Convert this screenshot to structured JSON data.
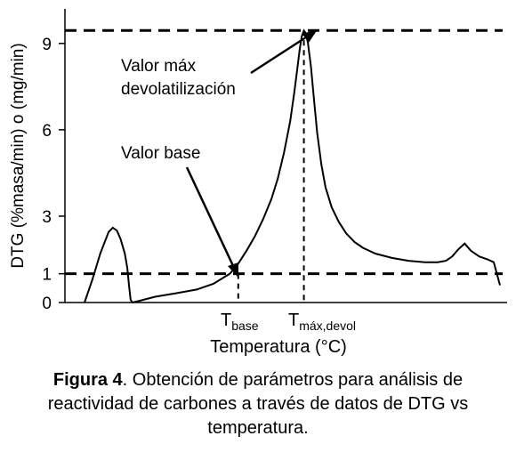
{
  "chart_data": {
    "type": "line",
    "ylabel": "DTG (%masa/min) o (mg/min)",
    "xlabel": "Temperatura (°C)",
    "yticks": [
      0,
      1,
      3,
      6,
      9
    ],
    "ylim": [
      0,
      10.2
    ],
    "grid": false,
    "x_ticks_labeled": false,
    "series": [
      {
        "segment": "initial peak",
        "x": [
          0.0,
          0.019,
          0.038,
          0.058,
          0.068,
          0.078,
          0.087,
          0.097,
          0.103,
          0.107,
          0.111,
          0.115
        ],
        "y": [
          0.0,
          0.8,
          1.7,
          2.45,
          2.6,
          2.5,
          2.2,
          1.7,
          1.2,
          0.6,
          0.1,
          0.0
        ]
      },
      {
        "segment": "main curve",
        "x": [
          0.115,
          0.13,
          0.17,
          0.22,
          0.27,
          0.31,
          0.35,
          0.37,
          0.39,
          0.41,
          0.43,
          0.45,
          0.465,
          0.48,
          0.495,
          0.505,
          0.512,
          0.518,
          0.523,
          0.528,
          0.533,
          0.538,
          0.545,
          0.552,
          0.56,
          0.57,
          0.58,
          0.595,
          0.612,
          0.63,
          0.65,
          0.67,
          0.7,
          0.74,
          0.78,
          0.82,
          0.85,
          0.87,
          0.885,
          0.9,
          0.915,
          0.93,
          0.95,
          0.97,
          0.985,
          1.0
        ],
        "y": [
          0.0,
          0.05,
          0.2,
          0.32,
          0.45,
          0.65,
          1.0,
          1.35,
          1.8,
          2.3,
          2.9,
          3.6,
          4.3,
          5.2,
          6.3,
          7.3,
          8.1,
          8.8,
          9.25,
          9.45,
          9.35,
          9.0,
          8.2,
          7.1,
          5.9,
          4.8,
          4.0,
          3.3,
          2.8,
          2.4,
          2.1,
          1.9,
          1.7,
          1.55,
          1.45,
          1.4,
          1.4,
          1.45,
          1.6,
          1.85,
          2.05,
          1.8,
          1.6,
          1.5,
          1.4,
          0.6
        ]
      }
    ],
    "reference_lines": {
      "horizontal": [
        {
          "y": 9.45,
          "style": "dashed"
        },
        {
          "y": 1.0,
          "style": "dashed"
        }
      ],
      "vertical_labels": {
        "t_base": "T",
        "t_base_sub": "base",
        "t_max": "T",
        "t_max_sub": "máx,devol"
      }
    },
    "annotations": [
      {
        "line1": "Valor máx",
        "line2": "devolatilización"
      },
      {
        "text": "Valor base"
      }
    ]
  },
  "caption": {
    "bold": "Figura 4",
    "rest": ". Obtención de parámetros para análisis de reactividad de carbones a través de datos de DTG vs temperatura."
  }
}
